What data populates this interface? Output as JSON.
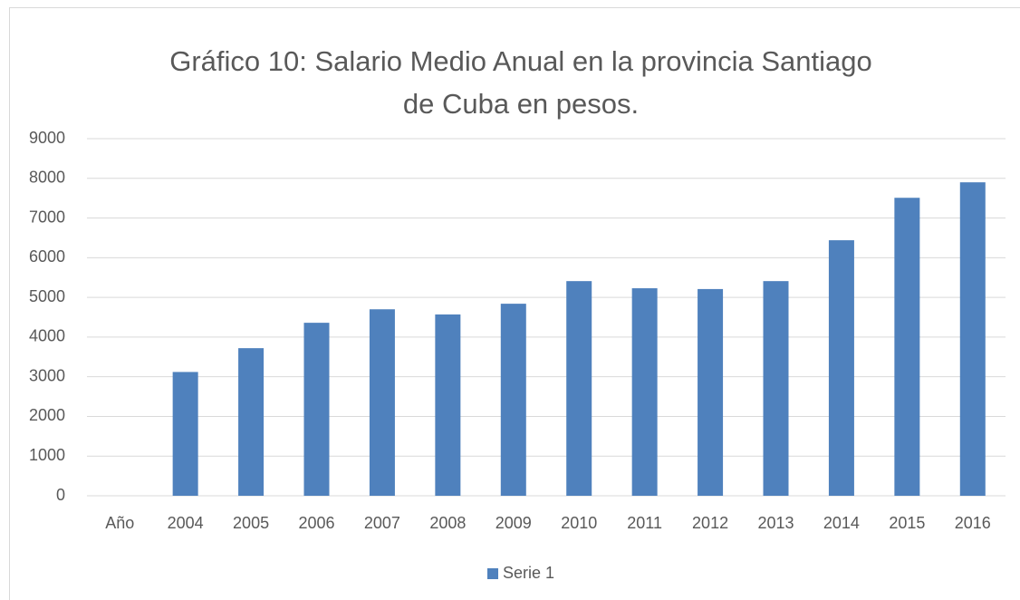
{
  "chart_data": {
    "type": "bar",
    "title": "Gráfico 10: Salario Medio Anual en la provincia Santiago de Cuba en pesos.",
    "categories": [
      "Año",
      "2004",
      "2005",
      "2006",
      "2007",
      "2008",
      "2009",
      "2010",
      "2011",
      "2012",
      "2013",
      "2014",
      "2015",
      "2016"
    ],
    "series": [
      {
        "name": "Serie 1",
        "color": "#4f81bd",
        "values": [
          null,
          3120,
          3720,
          4360,
          4700,
          4570,
          4840,
          5410,
          5230,
          5210,
          5410,
          6440,
          7510,
          7900
        ]
      }
    ],
    "ylim": [
      0,
      9000
    ],
    "yticks": [
      0,
      1000,
      2000,
      3000,
      4000,
      5000,
      6000,
      7000,
      8000,
      9000
    ],
    "grid": true,
    "legend": "bottom"
  }
}
